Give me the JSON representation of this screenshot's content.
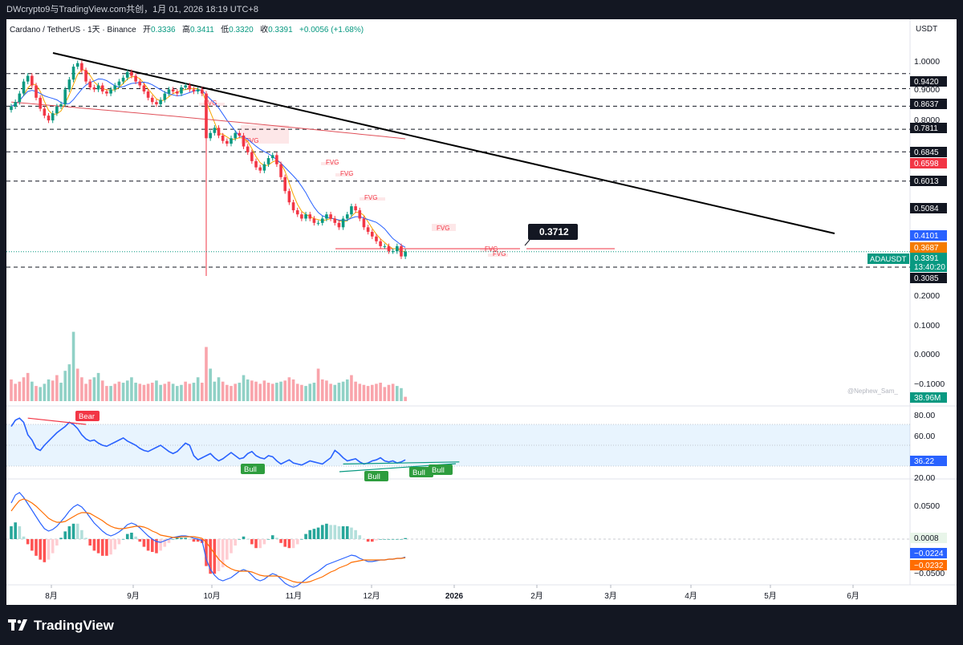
{
  "window_title": "DWcrypto9与TradingView.com共创，1月 01, 2026 18:19 UTC+8",
  "footer_brand": "TradingView",
  "symbol_line": {
    "name": "Cardano / TetherUS · 1天 · Binance",
    "open_label": "开",
    "open": "0.3336",
    "high_label": "高",
    "high": "0.3411",
    "low_label": "低",
    "low": "0.3320",
    "close_label": "收",
    "close": "0.3391",
    "change": "+0.0056 (+1.68%)"
  },
  "watermark": "@Nephew_Sam_",
  "colors": {
    "up": "#089981",
    "down": "#f23645",
    "trend": "#000000",
    "ma_fast": "#f7a600",
    "ma_slow": "#2962ff",
    "ma_long": "#e0515a",
    "rsi": "#2962ff",
    "fvg": "#f23645"
  },
  "chart_data": [
    {
      "type": "candlestick",
      "title": "Cardano / TetherUS · 1天 · Binance",
      "currency": "USDT",
      "x_ticks": [
        "8月",
        "9月",
        "10月",
        "11月",
        "12月",
        "2026",
        "2月",
        "3月",
        "4月",
        "5月",
        "6月"
      ],
      "y_ticks": [
        "1.0000",
        "0.9000",
        "0.8000",
        "0.2000",
        "0.1000",
        "0.0000",
        "−0.1000"
      ],
      "price_badges": [
        {
          "value": "0.9420",
          "style": "dark"
        },
        {
          "value": "0.8637",
          "style": "dark"
        },
        {
          "value": "0.7811",
          "style": "dark"
        },
        {
          "value": "0.6845",
          "style": "dark"
        },
        {
          "value": "0.6598",
          "style": "red"
        },
        {
          "value": "0.6013",
          "style": "dark"
        },
        {
          "value": "0.5084",
          "style": "dark"
        },
        {
          "value": "0.4101",
          "style": "blue"
        },
        {
          "value": "0.3687",
          "style": "orange"
        },
        {
          "value": "0.3391",
          "style": "green"
        },
        {
          "value": "13:40:20",
          "style": "green"
        },
        {
          "value": "0.3085",
          "style": "dark"
        }
      ],
      "current_label": "ADAUSDT",
      "horizontal_levels": [
        0.942,
        0.8637,
        0.7811,
        0.6845,
        0.6013,
        0.5084,
        0.3085
      ],
      "callout": "0.3712",
      "fvg_labels": [
        "FVG",
        "FVG",
        "FVG",
        "FVG",
        "FVG",
        "FVG",
        "FVG",
        "FVG"
      ],
      "trendline": {
        "from": [
          "2025-07-20",
          1.05
        ],
        "to": [
          "2026-05-25",
          0.455
        ]
      },
      "close_series": [
        0.78,
        0.8,
        0.84,
        0.9,
        0.93,
        0.88,
        0.82,
        0.77,
        0.74,
        0.72,
        0.75,
        0.78,
        0.79,
        0.86,
        0.91,
        0.98,
        1.0,
        0.96,
        0.9,
        0.87,
        0.86,
        0.88,
        0.85,
        0.84,
        0.86,
        0.88,
        0.9,
        0.92,
        0.95,
        0.93,
        0.9,
        0.88,
        0.85,
        0.82,
        0.8,
        0.79,
        0.81,
        0.84,
        0.86,
        0.85,
        0.84,
        0.87,
        0.88,
        0.86,
        0.85,
        0.86,
        0.84,
        0.65,
        0.67,
        0.69,
        0.66,
        0.64,
        0.63,
        0.65,
        0.67,
        0.66,
        0.62,
        0.6,
        0.57,
        0.55,
        0.54,
        0.56,
        0.58,
        0.59,
        0.56,
        0.52,
        0.48,
        0.45,
        0.43,
        0.42,
        0.41,
        0.42,
        0.41,
        0.4,
        0.4,
        0.41,
        0.42,
        0.41,
        0.4,
        0.39,
        0.41,
        0.42,
        0.44,
        0.43,
        0.41,
        0.39,
        0.38,
        0.37,
        0.36,
        0.35,
        0.35,
        0.34,
        0.34,
        0.35,
        0.33,
        0.339
      ]
    },
    {
      "type": "bar",
      "title": "Volume",
      "last_value": "38.96M",
      "values": [
        2.0,
        1.6,
        1.8,
        2.2,
        2.6,
        1.8,
        1.4,
        1.3,
        1.6,
        2.0,
        1.9,
        2.4,
        1.7,
        2.8,
        3.4,
        6.4,
        3.0,
        2.2,
        1.6,
        2.0,
        2.2,
        2.6,
        1.9,
        1.4,
        1.4,
        1.6,
        1.8,
        1.7,
        1.9,
        2.2,
        1.7,
        1.6,
        1.5,
        1.6,
        1.7,
        1.9,
        1.5,
        1.6,
        1.8,
        1.6,
        1.4,
        1.5,
        1.8,
        1.6,
        1.7,
        2.2,
        1.7,
        5.0,
        3.0,
        1.8,
        2.2,
        1.8,
        1.5,
        1.4,
        1.6,
        1.7,
        2.4,
        2.0,
        1.9,
        1.8,
        1.6,
        1.9,
        1.7,
        1.6,
        1.7,
        1.8,
        1.9,
        2.2,
        2.0,
        1.6,
        1.5,
        1.4,
        1.6,
        1.7,
        3.0,
        2.0,
        1.9,
        1.6,
        1.5,
        1.7,
        1.8,
        2.0,
        2.4,
        1.8,
        1.6,
        1.5,
        1.4,
        1.5,
        1.6,
        1.7,
        1.3,
        1.5,
        1.6,
        1.4,
        1.2,
        0.4
      ],
      "directions": "ddddduduuudduuuudddduuddudduuuudddduudduuudduudduuudddduuudddddduuddddduuudddduuuuddddddddddduuddu"
    },
    {
      "type": "line",
      "title": "RSI",
      "y_ticks": [
        "80.00",
        "60.00",
        "20.00"
      ],
      "last_value": "36.22",
      "band": [
        30,
        70
      ],
      "divergence_labels": [
        "Bear",
        "Bull",
        "Bull",
        "Bull",
        "Bull"
      ],
      "values": [
        68,
        74,
        76,
        72,
        60,
        55,
        47,
        45,
        50,
        54,
        58,
        62,
        65,
        68,
        72,
        70,
        66,
        60,
        56,
        54,
        55,
        52,
        50,
        49,
        51,
        53,
        55,
        57,
        54,
        52,
        50,
        47,
        45,
        44,
        46,
        48,
        50,
        47,
        44,
        42,
        44,
        48,
        52,
        50,
        40,
        36,
        38,
        40,
        42,
        38,
        35,
        37,
        40,
        43,
        40,
        37,
        38,
        42,
        44,
        40,
        38,
        37,
        40,
        39,
        35,
        32,
        34,
        36,
        33,
        32,
        31,
        33,
        35,
        34,
        33,
        32,
        35,
        38,
        45,
        42,
        38,
        35,
        36,
        37,
        34,
        32,
        33,
        35,
        36,
        38,
        35,
        34,
        35,
        33,
        34,
        36
      ]
    },
    {
      "type": "line",
      "title": "MACD",
      "y_ticks": [
        "0.0500",
        "−0.0500"
      ],
      "last_values": [
        "0.0008",
        "−0.0224",
        "−0.0232"
      ],
      "macd": [
        0.045,
        0.055,
        0.058,
        0.052,
        0.044,
        0.036,
        0.028,
        0.02,
        0.013,
        0.01,
        0.012,
        0.016,
        0.022,
        0.028,
        0.035,
        0.04,
        0.043,
        0.04,
        0.034,
        0.027,
        0.02,
        0.015,
        0.01,
        0.006,
        0.004,
        0.006,
        0.009,
        0.013,
        0.018,
        0.02,
        0.018,
        0.014,
        0.009,
        0.004,
        0.0,
        -0.003,
        -0.004,
        -0.002,
        0.0,
        0.002,
        0.003,
        0.004,
        0.004,
        0.003,
        0.001,
        0.0,
        -0.002,
        -0.025,
        -0.038,
        -0.045,
        -0.05,
        -0.052,
        -0.05,
        -0.048,
        -0.044,
        -0.04,
        -0.038,
        -0.04,
        -0.045,
        -0.05,
        -0.052,
        -0.05,
        -0.046,
        -0.043,
        -0.045,
        -0.05,
        -0.055,
        -0.058,
        -0.06,
        -0.058,
        -0.054,
        -0.05,
        -0.046,
        -0.043,
        -0.04,
        -0.036,
        -0.032,
        -0.03,
        -0.028,
        -0.026,
        -0.024,
        -0.022,
        -0.02,
        -0.021,
        -0.024,
        -0.026,
        -0.028,
        -0.028,
        -0.027,
        -0.026,
        -0.026,
        -0.025,
        -0.025,
        -0.024,
        -0.024,
        -0.0224
      ],
      "signal": [
        0.035,
        0.042,
        0.048,
        0.05,
        0.048,
        0.045,
        0.041,
        0.036,
        0.031,
        0.026,
        0.023,
        0.021,
        0.021,
        0.022,
        0.025,
        0.028,
        0.031,
        0.033,
        0.033,
        0.032,
        0.029,
        0.026,
        0.023,
        0.019,
        0.016,
        0.014,
        0.013,
        0.013,
        0.014,
        0.015,
        0.016,
        0.016,
        0.015,
        0.013,
        0.01,
        0.008,
        0.005,
        0.004,
        0.003,
        0.002,
        0.002,
        0.003,
        0.003,
        0.003,
        0.003,
        0.002,
        0.001,
        -0.004,
        -0.011,
        -0.018,
        -0.025,
        -0.03,
        -0.034,
        -0.037,
        -0.039,
        -0.04,
        -0.04,
        -0.04,
        -0.041,
        -0.043,
        -0.045,
        -0.046,
        -0.046,
        -0.046,
        -0.046,
        -0.047,
        -0.049,
        -0.051,
        -0.053,
        -0.054,
        -0.054,
        -0.054,
        -0.053,
        -0.051,
        -0.049,
        -0.047,
        -0.044,
        -0.041,
        -0.039,
        -0.036,
        -0.034,
        -0.032,
        -0.029,
        -0.028,
        -0.027,
        -0.026,
        -0.026,
        -0.026,
        -0.026,
        -0.026,
        -0.026,
        -0.025,
        -0.025,
        -0.024,
        -0.024,
        -0.0232
      ]
    }
  ]
}
